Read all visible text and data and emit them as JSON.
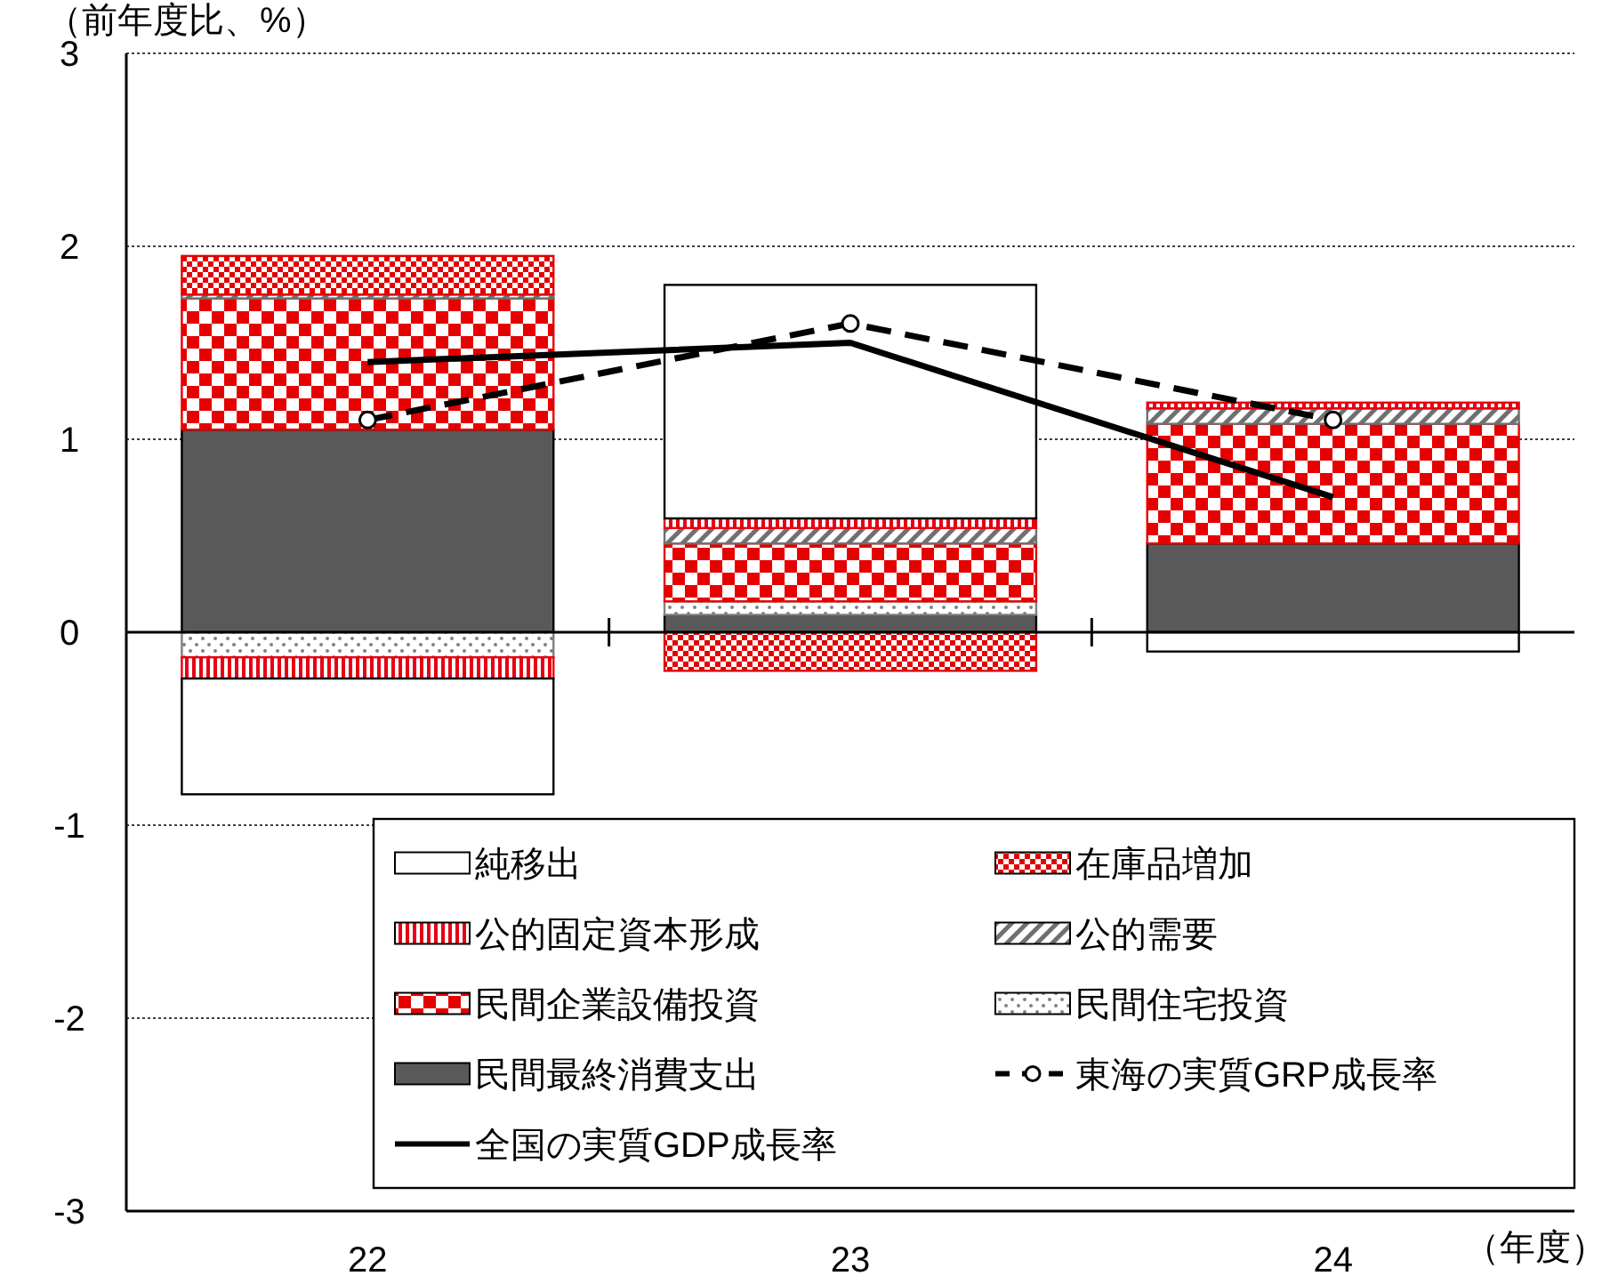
{
  "chart_data": {
    "type": "bar",
    "stacked": true,
    "ylabel": "（前年度比、%）",
    "xlabel": "（年度）",
    "categories": [
      "22",
      "23",
      "24"
    ],
    "ylim": [
      -3,
      3
    ],
    "yticks": [
      -3,
      -2,
      -1,
      0,
      1,
      2,
      3
    ],
    "grid": "y",
    "legend": "bottom",
    "series": [
      {
        "name": "民間最終消費支出",
        "color": "#595959",
        "values": [
          1.05,
          0.09,
          0.46
        ]
      },
      {
        "name": "民間住宅投資",
        "color": "#808080",
        "values": [
          -0.13,
          0.07,
          0
        ]
      },
      {
        "name": "民間企業設備投資",
        "color": "#e60000",
        "values": [
          0.68,
          0.3,
          0.62
        ]
      },
      {
        "name": "公的需要",
        "color": "#707070",
        "values": [
          0.02,
          0.08,
          0.08
        ]
      },
      {
        "name": "公的固定資本形成",
        "color": "#e60012",
        "values": [
          -0.11,
          0.05,
          0.03
        ]
      },
      {
        "name": "在庫品増加",
        "color": "#e50000",
        "values": [
          0.2,
          -0.2,
          0
        ]
      },
      {
        "name": "純移出",
        "color": "#ffffff",
        "values": [
          -0.6,
          1.21,
          -0.1
        ]
      },
      {
        "name": "東海の実質GRP成長率",
        "type": "line",
        "color": "#000000",
        "line_style": "dashed",
        "marker": "circle",
        "values": [
          1.1,
          1.6,
          1.1
        ]
      },
      {
        "name": "全国の実質GDP成長率",
        "type": "line",
        "color": "#000000",
        "line_style": "solid",
        "marker": "none",
        "values": [
          1.4,
          1.5,
          0.7
        ]
      }
    ]
  }
}
